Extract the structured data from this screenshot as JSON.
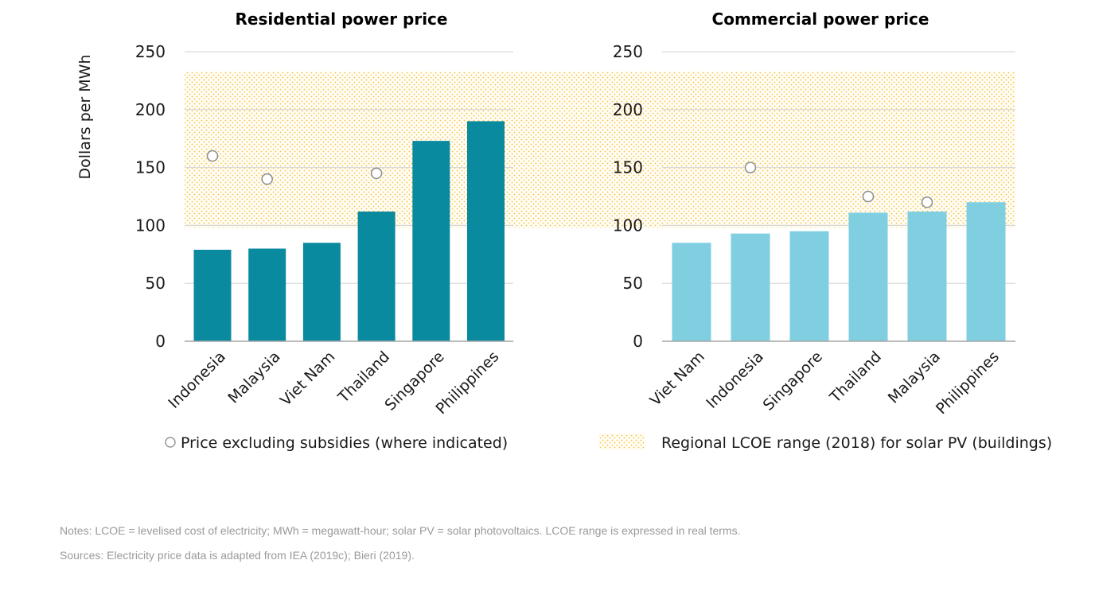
{
  "chart_data": [
    {
      "type": "bar",
      "title": "Residential power price",
      "ylabel": "Dollars per MWh",
      "ylim": [
        0,
        250
      ],
      "yticks": [
        0,
        50,
        100,
        150,
        200,
        250
      ],
      "categories": [
        "Indonesia",
        "Malaysia",
        "Viet Nam",
        "Thailand",
        "Singapore",
        "Philippines"
      ],
      "series": [
        {
          "name": "Power price",
          "values": [
            79,
            80,
            85,
            112,
            173,
            190
          ],
          "color": "#0a8a9f"
        },
        {
          "name": "Price excluding subsidies (where indicated)",
          "type": "scatter",
          "values": [
            160,
            140,
            null,
            145,
            null,
            null
          ]
        }
      ],
      "lcoe_range": [
        98,
        233
      ]
    },
    {
      "type": "bar",
      "title": "Commercial power price",
      "ylim": [
        0,
        250
      ],
      "yticks": [
        0,
        50,
        100,
        150,
        200,
        250
      ],
      "categories": [
        "Viet Nam",
        "Indonesia",
        "Singapore",
        "Thailand",
        "Malaysia",
        "Philippines"
      ],
      "series": [
        {
          "name": "Power price",
          "values": [
            85,
            93,
            95,
            111,
            112,
            120
          ],
          "color": "#7fcfe1"
        },
        {
          "name": "Price excluding subsidies (where indicated)",
          "type": "scatter",
          "values": [
            null,
            150,
            null,
            125,
            120,
            null
          ]
        }
      ],
      "lcoe_range": [
        98,
        233
      ]
    }
  ],
  "legend": {
    "markers_label": "Price excluding subsidies (where indicated)",
    "range_label": "Regional LCOE range (2018) for solar PV (buildings)",
    "range_color": "#f5c242"
  },
  "notes": "Notes: LCOE = levelised cost of electricity; MWh = megawatt-hour; solar PV = solar photovoltaics. LCOE range is expressed in real terms.",
  "sources": "Sources: Electricity price data is adapted from IEA (2019c); Bieri (2019)."
}
